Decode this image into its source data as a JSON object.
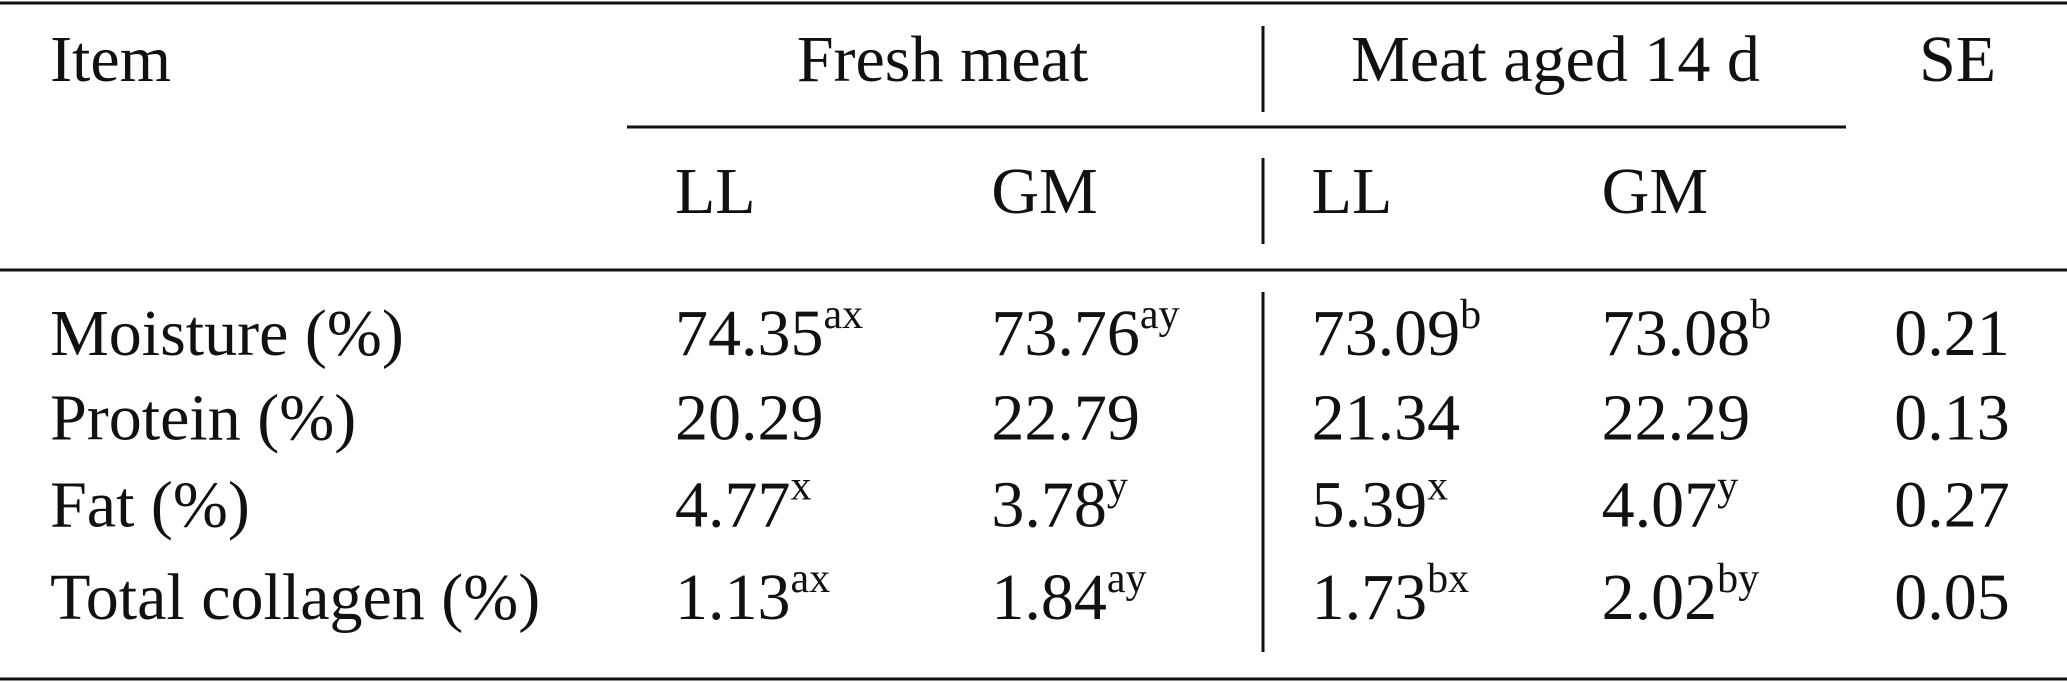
{
  "header": {
    "item": "Item",
    "groups": [
      "Fresh meat",
      "Meat aged 14 d"
    ],
    "se": "SE",
    "subheaders": [
      "LL",
      "GM",
      "LL",
      "GM"
    ]
  },
  "table": {
    "rows": [
      {
        "label": "Moisture (%)",
        "cells": [
          {
            "value": "74.35",
            "sup": "ax"
          },
          {
            "value": "73.76",
            "sup": "ay"
          },
          {
            "value": "73.09",
            "sup": "b"
          },
          {
            "value": "73.08",
            "sup": "b"
          }
        ],
        "se": "0.21"
      },
      {
        "label": "Protein (%)",
        "cells": [
          {
            "value": "20.29"
          },
          {
            "value": "22.79"
          },
          {
            "value": "21.34"
          },
          {
            "value": "22.29"
          }
        ],
        "se": "0.13"
      },
      {
        "label": "Fat (%)",
        "cells": [
          {
            "value": "4.77",
            "sup": "x"
          },
          {
            "value": "3.78",
            "sup": "y"
          },
          {
            "value": "5.39",
            "sup": "x"
          },
          {
            "value": "4.07",
            "sup": "y"
          }
        ],
        "se": "0.27"
      },
      {
        "label": "Total collagen (%)",
        "cells": [
          {
            "value": "1.13",
            "sup": "ax"
          },
          {
            "value": "1.84",
            "sup": "ay"
          },
          {
            "value": "1.73",
            "sup": "bx"
          },
          {
            "value": "2.02",
            "sup": "by"
          }
        ],
        "se": "0.05"
      }
    ]
  }
}
